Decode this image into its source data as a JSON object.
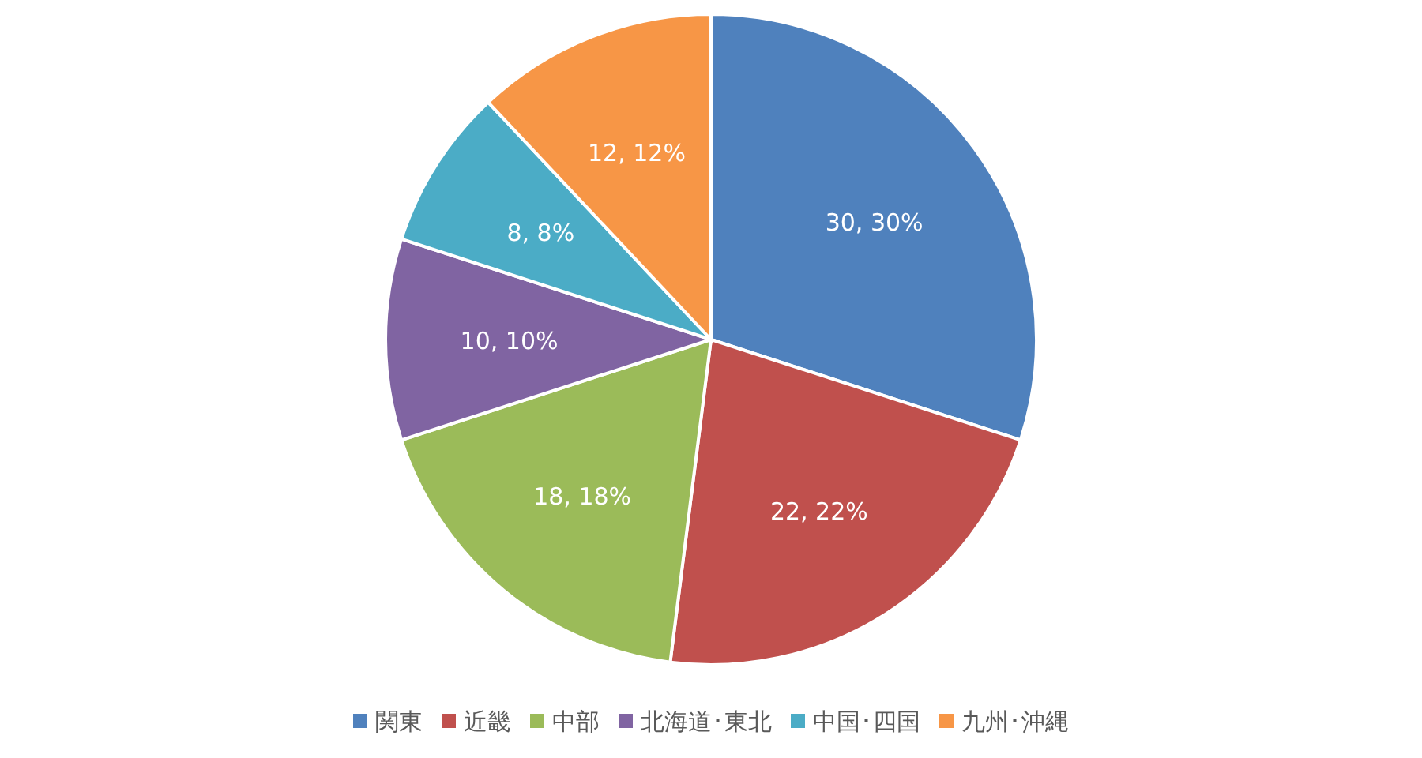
{
  "chart_data": {
    "type": "pie",
    "categories": [
      "関東",
      "近畿",
      "中部",
      "北海道･東北",
      "中国･四国",
      "九州･沖縄"
    ],
    "values": [
      30,
      22,
      18,
      10,
      8,
      12
    ],
    "colors": [
      "#4f81bd",
      "#c0504d",
      "#9bbb59",
      "#8064a2",
      "#4bacc6",
      "#f79646"
    ],
    "value_labels": [
      "30, 30%",
      "22, 22%",
      "18, 18%",
      "10, 10%",
      "8, 8%",
      "12, 12%"
    ],
    "legend": "bottom"
  }
}
